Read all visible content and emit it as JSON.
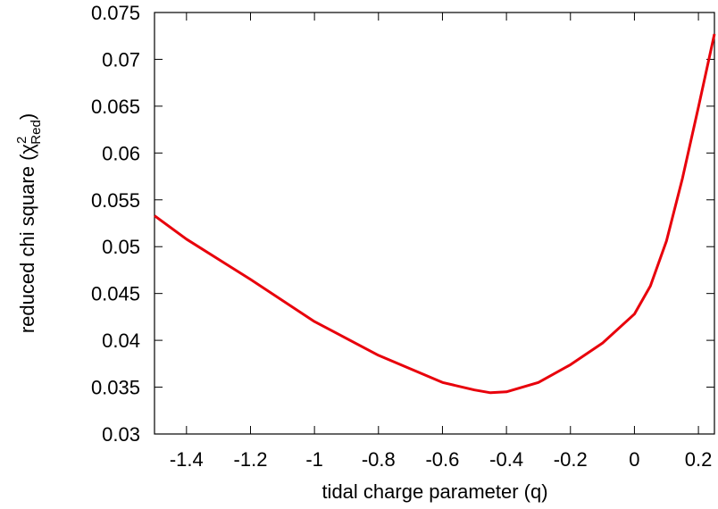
{
  "chart_data": {
    "type": "line",
    "xlabel": "tidal charge parameter (q)",
    "ylabel": {
      "main": "reduced chi square (χ",
      "sup": "2",
      "sub": "Red",
      "end": ")"
    },
    "x": [
      -1.5,
      -1.4,
      -1.2,
      -1.0,
      -0.8,
      -0.6,
      -0.5,
      -0.45,
      -0.4,
      -0.3,
      -0.2,
      -0.1,
      0,
      0.05,
      0.1,
      0.15,
      0.2,
      0.25
    ],
    "series": [
      {
        "color": "#e8000b",
        "values": [
          0.0533,
          0.0508,
          0.0465,
          0.042,
          0.0384,
          0.0355,
          0.0347,
          0.0344,
          0.0345,
          0.0355,
          0.0374,
          0.0397,
          0.0428,
          0.0458,
          0.0506,
          0.0573,
          0.0649,
          0.0727
        ]
      }
    ],
    "xlim": [
      -1.5,
      0.25
    ],
    "ylim": [
      0.03,
      0.075
    ],
    "xticks": [
      -1.4,
      -1.2,
      -1,
      -0.8,
      -0.6,
      -0.4,
      -0.2,
      0,
      0.2
    ],
    "yticks": [
      0.03,
      0.035,
      0.04,
      0.045,
      0.05,
      0.055,
      0.06,
      0.065,
      0.07,
      0.075
    ]
  }
}
